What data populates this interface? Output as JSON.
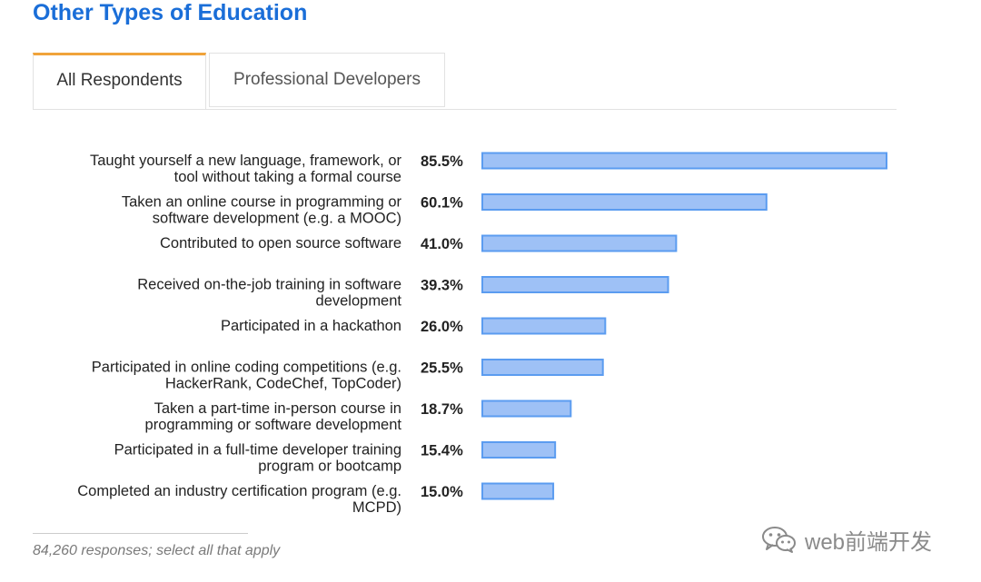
{
  "header": {
    "title": "Other Types of Education"
  },
  "tabs": [
    {
      "label": "All Respondents",
      "active": true
    },
    {
      "label": "Professional Developers",
      "active": false
    }
  ],
  "chart_data": {
    "type": "bar",
    "orientation": "horizontal",
    "categories": [
      [
        "Taught yourself a new language, framework, or",
        "tool without taking a formal course"
      ],
      [
        "Taken an online course in programming or",
        "software development (e.g. a MOOC)"
      ],
      [
        "Contributed to open source software"
      ],
      [
        "Received on-the-job training in software",
        "development"
      ],
      [
        "Participated in a hackathon"
      ],
      [
        "Participated in online coding competitions (e.g.",
        "HackerRank, CodeChef, TopCoder)"
      ],
      [
        "Taken a part-time in-person course in",
        "programming or software development"
      ],
      [
        "Participated in a full-time developer training",
        "program or bootcamp"
      ],
      [
        "Completed an industry certification program (e.g.",
        "MCPD)"
      ]
    ],
    "values": [
      85.5,
      60.1,
      41.0,
      39.3,
      26.0,
      25.5,
      18.7,
      15.4,
      15.0
    ],
    "value_labels": [
      "85.5%",
      "60.1%",
      "41.0%",
      "39.3%",
      "26.0%",
      "25.5%",
      "18.7%",
      "15.4%",
      "15.0%"
    ],
    "xlim": [
      0,
      85.5
    ],
    "bar_color": "#9ec1f6",
    "bar_border_color": "#5b9cf0",
    "grid": false,
    "legend": "none"
  },
  "footnote": "84,260 responses; select all that apply",
  "watermark": {
    "icon": "wechat-icon",
    "text": "web前端开发"
  },
  "colors": {
    "title": "#1a6ed8",
    "tab_active_accent": "#f0a33a"
  }
}
